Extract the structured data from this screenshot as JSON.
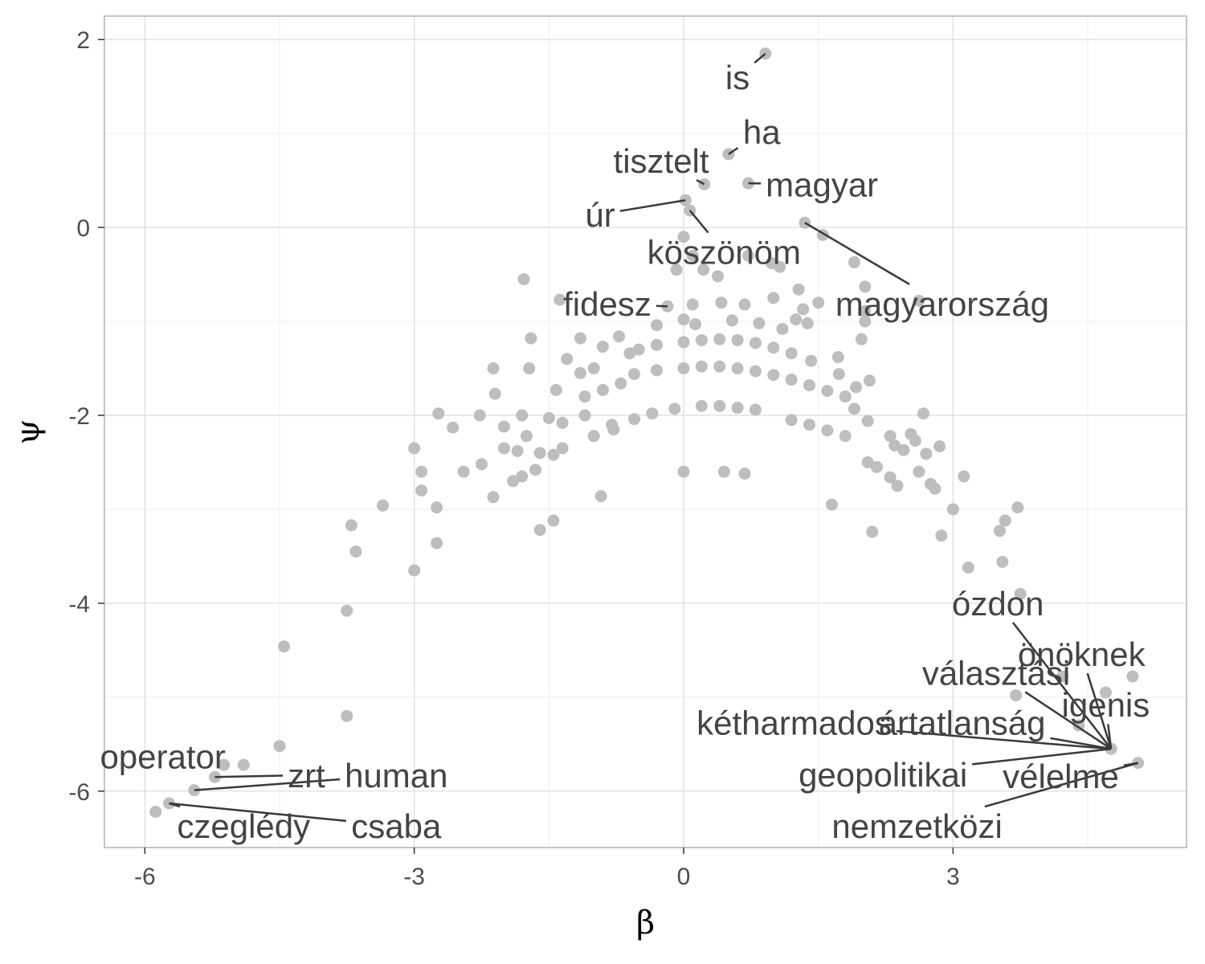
{
  "chart_data": {
    "type": "scatter",
    "xlabel": "β",
    "ylabel": "ψ",
    "xlim": [
      -6.45,
      5.6
    ],
    "ylim": [
      -6.6,
      2.25
    ],
    "x_ticks": [
      {
        "value": -6,
        "label": "-6"
      },
      {
        "value": -3,
        "label": "-3"
      },
      {
        "value": 0,
        "label": "0"
      },
      {
        "value": 3,
        "label": "3"
      }
    ],
    "y_ticks": [
      {
        "value": 2,
        "label": "2"
      },
      {
        "value": 0,
        "label": "0"
      },
      {
        "value": -2,
        "label": "-2"
      },
      {
        "value": -4,
        "label": "-4"
      },
      {
        "value": -6,
        "label": "-6"
      }
    ],
    "grid": true,
    "point_color": "#bebebe",
    "label_color": "#444444",
    "labeled_points": [
      {
        "word": "is",
        "x": 0.91,
        "y": 1.85,
        "lx": 0.6,
        "ly": 1.6
      },
      {
        "word": "ha",
        "x": 0.5,
        "y": 0.78,
        "lx": 0.87,
        "ly": 1.02
      },
      {
        "word": "tisztelt",
        "x": 0.23,
        "y": 0.46,
        "lx": -0.25,
        "ly": 0.71
      },
      {
        "word": "magyar",
        "x": 0.72,
        "y": 0.47,
        "lx": 1.54,
        "ly": 0.46
      },
      {
        "word": "úr",
        "x": 0.02,
        "y": 0.29,
        "lx": -0.93,
        "ly": 0.14
      },
      {
        "word": "köszönöm",
        "x": 0.07,
        "y": 0.18,
        "lx": 0.45,
        "ly": -0.26
      },
      {
        "word": "fidesz",
        "x": -0.18,
        "y": -0.84,
        "lx": -0.85,
        "ly": -0.81
      },
      {
        "word": "magyarország",
        "x": 1.35,
        "y": 0.05,
        "lx": 2.88,
        "ly": -0.81
      },
      {
        "word": "ózdon",
        "x": 4.76,
        "y": -5.55,
        "lx": 3.5,
        "ly": -4.0
      },
      {
        "word": "önöknek",
        "x": 4.76,
        "y": -5.55,
        "lx": 4.43,
        "ly": -4.54
      },
      {
        "word": "választási",
        "x": 4.76,
        "y": -5.55,
        "lx": 3.48,
        "ly": -4.74
      },
      {
        "word": "igenis",
        "x": 4.76,
        "y": -5.55,
        "lx": 4.7,
        "ly": -5.08
      },
      {
        "word": "kétharmados",
        "x": 4.76,
        "y": -5.55,
        "lx": 1.23,
        "ly": -5.27
      },
      {
        "word": "ártatlanság",
        "x": 4.76,
        "y": -5.55,
        "lx": 3.1,
        "ly": -5.27
      },
      {
        "word": "geopolitikai",
        "x": 4.76,
        "y": -5.55,
        "lx": 2.22,
        "ly": -5.82
      },
      {
        "word": "vélelme",
        "x": 5.06,
        "y": -5.7,
        "lx": 4.2,
        "ly": -5.84
      },
      {
        "word": "nemzetközi",
        "x": 5.06,
        "y": -5.7,
        "lx": 2.6,
        "ly": -6.37
      },
      {
        "word": "operator",
        "x": -5.12,
        "y": -5.72,
        "lx": -5.8,
        "ly": -5.63
      },
      {
        "word": "zrt",
        "x": -5.22,
        "y": -5.85,
        "lx": -4.2,
        "ly": -5.83
      },
      {
        "word": "human",
        "x": -5.45,
        "y": -5.99,
        "lx": -3.2,
        "ly": -5.83
      },
      {
        "word": "czeglédy",
        "x": -5.73,
        "y": -6.13,
        "lx": -4.9,
        "ly": -6.37
      },
      {
        "word": "csaba",
        "x": -5.73,
        "y": -6.13,
        "lx": -3.2,
        "ly": -6.37
      }
    ],
    "points": [
      [
        0.91,
        1.85
      ],
      [
        0.5,
        0.78
      ],
      [
        0.23,
        0.46
      ],
      [
        0.72,
        0.47
      ],
      [
        0.02,
        0.29
      ],
      [
        0.07,
        0.18
      ],
      [
        1.35,
        0.05
      ],
      [
        1.55,
        -0.08
      ],
      [
        0.0,
        -0.1
      ],
      [
        0.1,
        -0.3
      ],
      [
        -0.08,
        -0.45
      ],
      [
        0.22,
        -0.45
      ],
      [
        0.38,
        -0.52
      ],
      [
        0.72,
        -0.3
      ],
      [
        0.98,
        -0.38
      ],
      [
        1.07,
        -0.42
      ],
      [
        1.28,
        -0.66
      ],
      [
        1.9,
        -0.37
      ],
      [
        2.02,
        -0.63
      ],
      [
        -1.78,
        -0.55
      ],
      [
        -1.38,
        -0.77
      ],
      [
        -0.18,
        -0.84
      ],
      [
        0.1,
        -0.82
      ],
      [
        0.42,
        -0.8
      ],
      [
        0.68,
        -0.82
      ],
      [
        1.0,
        -0.75
      ],
      [
        1.33,
        -0.87
      ],
      [
        1.5,
        -0.8
      ],
      [
        2.02,
        -0.89
      ],
      [
        2.62,
        -0.78
      ],
      [
        -0.3,
        -1.04
      ],
      [
        0.0,
        -0.98
      ],
      [
        0.13,
        -1.03
      ],
      [
        0.54,
        -0.99
      ],
      [
        0.84,
        -1.02
      ],
      [
        1.1,
        -1.08
      ],
      [
        1.25,
        -0.98
      ],
      [
        1.38,
        -1.02
      ],
      [
        2.02,
        -1.0
      ],
      [
        -1.15,
        -1.18
      ],
      [
        -0.72,
        -1.16
      ],
      [
        -1.7,
        -1.18
      ],
      [
        -0.9,
        -1.27
      ],
      [
        -1.3,
        -1.4
      ],
      [
        -1.15,
        -1.55
      ],
      [
        -1.0,
        -1.5
      ],
      [
        -0.6,
        -1.34
      ],
      [
        -0.5,
        -1.3
      ],
      [
        -0.3,
        -1.25
      ],
      [
        0.0,
        -1.22
      ],
      [
        0.2,
        -1.2
      ],
      [
        0.4,
        -1.19
      ],
      [
        0.6,
        -1.2
      ],
      [
        0.8,
        -1.23
      ],
      [
        1.0,
        -1.28
      ],
      [
        1.2,
        -1.34
      ],
      [
        1.42,
        -1.42
      ],
      [
        1.72,
        -1.38
      ],
      [
        1.98,
        -1.19
      ],
      [
        1.73,
        -1.56
      ],
      [
        -2.12,
        -1.5
      ],
      [
        -1.72,
        -1.5
      ],
      [
        -0.55,
        -1.56
      ],
      [
        -0.3,
        -1.52
      ],
      [
        0.0,
        -1.5
      ],
      [
        0.2,
        -1.48
      ],
      [
        0.4,
        -1.48
      ],
      [
        0.6,
        -1.5
      ],
      [
        0.8,
        -1.53
      ],
      [
        1.0,
        -1.57
      ],
      [
        1.2,
        -1.62
      ],
      [
        1.4,
        -1.68
      ],
      [
        1.6,
        -1.74
      ],
      [
        1.8,
        -1.8
      ],
      [
        1.92,
        -1.7
      ],
      [
        2.07,
        -1.63
      ],
      [
        -0.9,
        -1.73
      ],
      [
        -0.7,
        -1.66
      ],
      [
        -1.1,
        -1.8
      ],
      [
        -1.42,
        -1.73
      ],
      [
        -2.1,
        -1.77
      ],
      [
        -2.27,
        -2.0
      ],
      [
        -2.73,
        -1.98
      ],
      [
        -2.57,
        -2.13
      ],
      [
        -1.8,
        -2.0
      ],
      [
        -1.5,
        -2.03
      ],
      [
        -1.35,
        -2.08
      ],
      [
        -1.1,
        -2.0
      ],
      [
        -0.8,
        -2.1
      ],
      [
        -0.55,
        -2.04
      ],
      [
        -0.35,
        -1.98
      ],
      [
        -0.1,
        -1.93
      ],
      [
        0.2,
        -1.9
      ],
      [
        0.4,
        -1.9
      ],
      [
        0.6,
        -1.92
      ],
      [
        0.8,
        -1.94
      ],
      [
        1.2,
        -2.05
      ],
      [
        1.4,
        -2.1
      ],
      [
        1.6,
        -2.16
      ],
      [
        1.8,
        -2.22
      ],
      [
        1.9,
        -1.93
      ],
      [
        2.05,
        -2.06
      ],
      [
        -2.0,
        -2.12
      ],
      [
        -1.75,
        -2.22
      ],
      [
        -2.0,
        -2.35
      ],
      [
        -1.85,
        -2.38
      ],
      [
        -1.6,
        -2.4
      ],
      [
        -1.0,
        -2.22
      ],
      [
        -0.78,
        -2.15
      ],
      [
        -2.45,
        -2.6
      ],
      [
        -2.25,
        -2.52
      ],
      [
        -1.9,
        -2.7
      ],
      [
        -1.8,
        -2.65
      ],
      [
        -1.65,
        -2.58
      ],
      [
        -1.45,
        -2.42
      ],
      [
        -1.35,
        -2.35
      ],
      [
        -3.0,
        -2.35
      ],
      [
        -2.92,
        -2.6
      ],
      [
        -2.92,
        -2.8
      ],
      [
        -2.75,
        -2.98
      ],
      [
        -2.75,
        -3.36
      ],
      [
        -2.12,
        -2.87
      ],
      [
        -1.6,
        -3.22
      ],
      [
        -1.45,
        -3.12
      ],
      [
        -0.92,
        -2.86
      ],
      [
        0.0,
        -2.6
      ],
      [
        0.45,
        -2.6
      ],
      [
        0.68,
        -2.62
      ],
      [
        2.3,
        -2.22
      ],
      [
        2.35,
        -2.32
      ],
      [
        2.45,
        -2.37
      ],
      [
        2.53,
        -2.2
      ],
      [
        2.58,
        -2.27
      ],
      [
        2.67,
        -1.98
      ],
      [
        2.7,
        -2.41
      ],
      [
        2.85,
        -2.33
      ],
      [
        2.62,
        -2.6
      ],
      [
        2.3,
        -2.66
      ],
      [
        2.38,
        -2.75
      ],
      [
        2.75,
        -2.73
      ],
      [
        2.8,
        -2.78
      ],
      [
        2.05,
        -2.5
      ],
      [
        2.15,
        -2.55
      ],
      [
        1.65,
        -2.95
      ],
      [
        2.1,
        -3.24
      ],
      [
        3.0,
        -3.0
      ],
      [
        2.87,
        -3.28
      ],
      [
        3.12,
        -2.65
      ],
      [
        3.17,
        -3.62
      ],
      [
        3.52,
        -3.23
      ],
      [
        3.58,
        -3.12
      ],
      [
        3.55,
        -3.56
      ],
      [
        3.72,
        -2.98
      ],
      [
        3.75,
        -3.9
      ],
      [
        4.22,
        -4.78
      ],
      [
        4.7,
        -4.95
      ],
      [
        3.7,
        -4.98
      ],
      [
        4.4,
        -5.3
      ],
      [
        4.76,
        -5.55
      ],
      [
        5.0,
        -4.78
      ],
      [
        5.06,
        -5.7
      ],
      [
        -3.35,
        -2.96
      ],
      [
        -3.0,
        -3.65
      ],
      [
        -3.7,
        -3.17
      ],
      [
        -3.65,
        -3.45
      ],
      [
        -3.75,
        -4.08
      ],
      [
        -4.45,
        -4.46
      ],
      [
        -3.75,
        -5.2
      ],
      [
        -4.5,
        -5.52
      ],
      [
        -4.9,
        -5.72
      ],
      [
        -5.12,
        -5.72
      ],
      [
        -5.22,
        -5.85
      ],
      [
        -5.45,
        -5.99
      ],
      [
        -5.73,
        -6.13
      ],
      [
        -5.88,
        -6.22
      ]
    ]
  }
}
